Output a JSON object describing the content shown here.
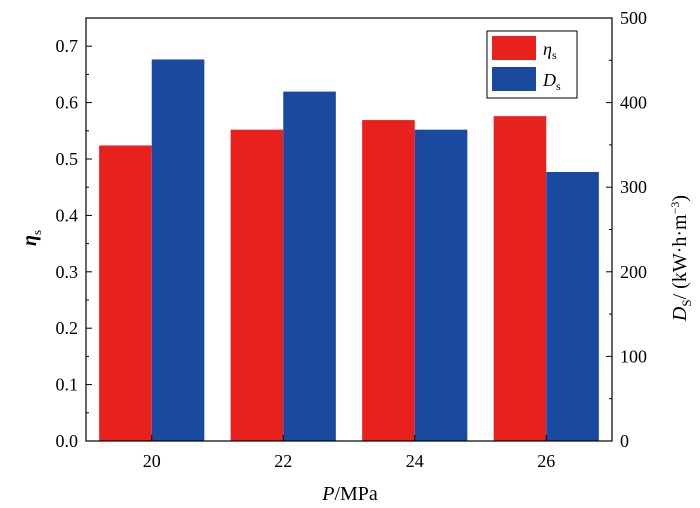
{
  "chart_data": {
    "type": "bar",
    "categories": [
      "20",
      "22",
      "24",
      "26"
    ],
    "xlabel": {
      "main": "P",
      "unit": "/MPa"
    },
    "ylabel_left": {
      "main": "η",
      "sub": "s"
    },
    "ylabel_right": {
      "main": "D",
      "sub": "S",
      "unit": "/ (kW·h·m",
      "sup": "−3",
      "close": ")"
    },
    "ylim_left": [
      0,
      0.75
    ],
    "ylim_right": [
      0,
      500
    ],
    "yticks_left": [
      "0.0",
      "0.1",
      "0.2",
      "0.3",
      "0.4",
      "0.5",
      "0.6",
      "0.7"
    ],
    "yticks_right": [
      "0",
      "100",
      "200",
      "300",
      "400",
      "500"
    ],
    "series": [
      {
        "name": "η",
        "name_sub": "s",
        "axis": "left",
        "color": "#e8211d",
        "values": [
          0.524,
          0.552,
          0.569,
          0.576
        ]
      },
      {
        "name": "D",
        "name_sub": "s",
        "axis": "right",
        "color": "#1a4aa0",
        "values": [
          451,
          413,
          368,
          318
        ]
      }
    ],
    "legend_position": "top-right",
    "grid": false
  }
}
